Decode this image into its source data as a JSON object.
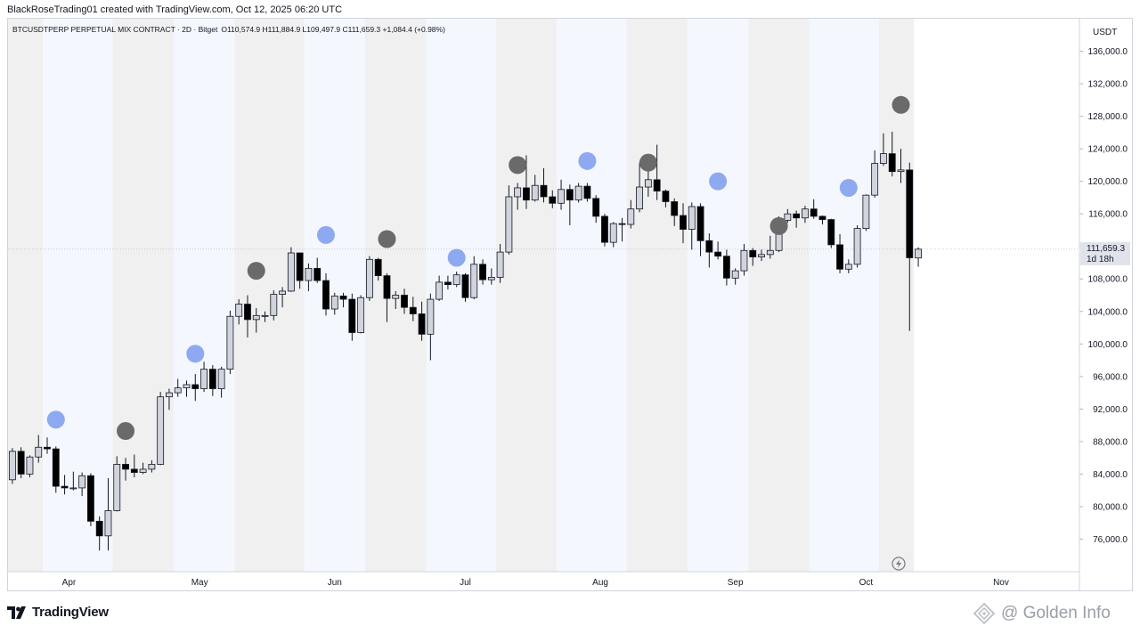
{
  "header": {
    "attribution": "BlackRoseTrading01 created with TradingView.com, Oct 12, 2025 06:20 UTC",
    "legend": "BTCUSDTPERP PERPETUAL MIX CONTRACT · 2D · Bitget",
    "ohlc": "O110,574.9 H111,884.9 L109,497.9 C111,659.3 +1,084.4 (+0.98%)"
  },
  "price_axis": {
    "currency": "USDT",
    "last_price": "111,659.3",
    "countdown": "1d 18h"
  },
  "footer": {
    "brand": "TradingView",
    "watermark": "@ Golden Info"
  },
  "colors": {
    "up_fill": "#d1d4dc",
    "down_fill": "#000000",
    "wick": "#131722",
    "band_gray": "#f0f0f0",
    "band_blue": "#f4f7fe",
    "dot_gray": "#6a6a6a",
    "dot_blue": "#8fa9f0"
  },
  "chart_data": {
    "type": "candlestick",
    "interval": "2D",
    "ylim": [
      72000,
      140000
    ],
    "yticks": [
      {
        "v": 136000,
        "label": "136,000.0"
      },
      {
        "v": 132000,
        "label": "132,000.0"
      },
      {
        "v": 128000,
        "label": "128,000.0"
      },
      {
        "v": 124000,
        "label": "124,000.0"
      },
      {
        "v": 120000,
        "label": "120,000.0"
      },
      {
        "v": 116000,
        "label": "116,000.0"
      },
      {
        "v": 112000,
        "label": "112,000.0"
      },
      {
        "v": 108000,
        "label": "108,000.0"
      },
      {
        "v": 104000,
        "label": "104,000.0"
      },
      {
        "v": 100000,
        "label": "100,000.0"
      },
      {
        "v": 96000,
        "label": "96,000.0"
      },
      {
        "v": 92000,
        "label": "92,000.0"
      },
      {
        "v": 88000,
        "label": "88,000.0"
      },
      {
        "v": 84000,
        "label": "84,000.0"
      },
      {
        "v": 80000,
        "label": "80,000.0"
      },
      {
        "v": 76000,
        "label": "76,000.0"
      }
    ],
    "xrange": [
      "2025-03-18",
      "2025-11-19"
    ],
    "xticks": [
      {
        "date": "2025-04-01",
        "label": "Apr"
      },
      {
        "date": "2025-05-01",
        "label": "May"
      },
      {
        "date": "2025-06-01",
        "label": "Jun"
      },
      {
        "date": "2025-07-01",
        "label": "Jul"
      },
      {
        "date": "2025-08-01",
        "label": "Aug"
      },
      {
        "date": "2025-09-01",
        "label": "Sep"
      },
      {
        "date": "2025-10-01",
        "label": "Oct"
      },
      {
        "date": "2025-11-01",
        "label": "Nov"
      }
    ],
    "bands": [
      {
        "from": "2025-03-18",
        "to": "2025-03-26",
        "tone": "gray"
      },
      {
        "from": "2025-03-26",
        "to": "2025-04-11",
        "tone": "blue"
      },
      {
        "from": "2025-04-11",
        "to": "2025-04-25",
        "tone": "gray"
      },
      {
        "from": "2025-04-25",
        "to": "2025-05-09",
        "tone": "blue"
      },
      {
        "from": "2025-05-09",
        "to": "2025-05-25",
        "tone": "gray"
      },
      {
        "from": "2025-05-25",
        "to": "2025-06-08",
        "tone": "blue"
      },
      {
        "from": "2025-06-08",
        "to": "2025-06-22",
        "tone": "gray"
      },
      {
        "from": "2025-06-22",
        "to": "2025-07-08",
        "tone": "blue"
      },
      {
        "from": "2025-07-08",
        "to": "2025-07-22",
        "tone": "gray"
      },
      {
        "from": "2025-07-22",
        "to": "2025-08-07",
        "tone": "blue"
      },
      {
        "from": "2025-08-07",
        "to": "2025-08-21",
        "tone": "gray"
      },
      {
        "from": "2025-08-21",
        "to": "2025-09-04",
        "tone": "blue"
      },
      {
        "from": "2025-09-04",
        "to": "2025-09-18",
        "tone": "gray"
      },
      {
        "from": "2025-09-18",
        "to": "2025-10-04",
        "tone": "blue"
      },
      {
        "from": "2025-10-04",
        "to": "2025-10-12",
        "tone": "gray"
      }
    ],
    "candles": [
      {
        "d": "2025-03-18",
        "o": 83300,
        "h": 87200,
        "l": 82800,
        "c": 86800
      },
      {
        "d": "2025-03-20",
        "o": 86800,
        "h": 87300,
        "l": 83500,
        "c": 84000
      },
      {
        "d": "2025-03-22",
        "o": 84000,
        "h": 86300,
        "l": 83600,
        "c": 86100
      },
      {
        "d": "2025-03-24",
        "o": 86100,
        "h": 88800,
        "l": 85400,
        "c": 87300
      },
      {
        "d": "2025-03-26",
        "o": 87300,
        "h": 88500,
        "l": 86500,
        "c": 87100
      },
      {
        "d": "2025-03-28",
        "o": 87100,
        "h": 87400,
        "l": 81700,
        "c": 82500
      },
      {
        "d": "2025-03-30",
        "o": 82500,
        "h": 83900,
        "l": 81500,
        "c": 82300
      },
      {
        "d": "2025-04-01",
        "o": 82300,
        "h": 84300,
        "l": 82000,
        "c": 82300
      },
      {
        "d": "2025-04-03",
        "o": 82300,
        "h": 84200,
        "l": 81300,
        "c": 83800
      },
      {
        "d": "2025-04-05",
        "o": 83800,
        "h": 84100,
        "l": 77600,
        "c": 78200
      },
      {
        "d": "2025-04-07",
        "o": 78200,
        "h": 78800,
        "l": 74600,
        "c": 76400
      },
      {
        "d": "2025-04-09",
        "o": 76400,
        "h": 83500,
        "l": 74600,
        "c": 79500
      },
      {
        "d": "2025-04-11",
        "o": 79500,
        "h": 86200,
        "l": 79400,
        "c": 85200
      },
      {
        "d": "2025-04-13",
        "o": 85200,
        "h": 86000,
        "l": 83200,
        "c": 84600
      },
      {
        "d": "2025-04-15",
        "o": 84600,
        "h": 86400,
        "l": 83600,
        "c": 84200
      },
      {
        "d": "2025-04-17",
        "o": 84200,
        "h": 85400,
        "l": 84000,
        "c": 84600
      },
      {
        "d": "2025-04-19",
        "o": 84600,
        "h": 85700,
        "l": 84200,
        "c": 85200
      },
      {
        "d": "2025-04-21",
        "o": 85200,
        "h": 94100,
        "l": 85100,
        "c": 93500
      },
      {
        "d": "2025-04-23",
        "o": 93500,
        "h": 94500,
        "l": 91900,
        "c": 94000
      },
      {
        "d": "2025-04-25",
        "o": 94000,
        "h": 95700,
        "l": 93500,
        "c": 94600
      },
      {
        "d": "2025-04-27",
        "o": 94600,
        "h": 95500,
        "l": 93500,
        "c": 95000
      },
      {
        "d": "2025-04-29",
        "o": 95000,
        "h": 96300,
        "l": 93000,
        "c": 94500
      },
      {
        "d": "2025-05-01",
        "o": 94500,
        "h": 97800,
        "l": 94100,
        "c": 96900
      },
      {
        "d": "2025-05-03",
        "o": 96900,
        "h": 97400,
        "l": 93600,
        "c": 94500
      },
      {
        "d": "2025-05-05",
        "o": 94500,
        "h": 97200,
        "l": 93400,
        "c": 96900
      },
      {
        "d": "2025-05-07",
        "o": 96900,
        "h": 104100,
        "l": 96300,
        "c": 103400
      },
      {
        "d": "2025-05-09",
        "o": 103400,
        "h": 105500,
        "l": 102400,
        "c": 104900
      },
      {
        "d": "2025-05-11",
        "o": 104900,
        "h": 106000,
        "l": 100800,
        "c": 103000
      },
      {
        "d": "2025-05-13",
        "o": 103000,
        "h": 104400,
        "l": 101400,
        "c": 103500
      },
      {
        "d": "2025-05-15",
        "o": 103500,
        "h": 104000,
        "l": 102700,
        "c": 103500
      },
      {
        "d": "2025-05-17",
        "o": 103500,
        "h": 106600,
        "l": 102900,
        "c": 106100
      },
      {
        "d": "2025-05-19",
        "o": 106100,
        "h": 107000,
        "l": 104500,
        "c": 106500
      },
      {
        "d": "2025-05-21",
        "o": 106500,
        "h": 111900,
        "l": 106400,
        "c": 111200
      },
      {
        "d": "2025-05-23",
        "o": 111200,
        "h": 111200,
        "l": 106800,
        "c": 107800
      },
      {
        "d": "2025-05-25",
        "o": 107800,
        "h": 109900,
        "l": 106500,
        "c": 109300
      },
      {
        "d": "2025-05-27",
        "o": 109300,
        "h": 110600,
        "l": 107500,
        "c": 107800
      },
      {
        "d": "2025-05-29",
        "o": 107800,
        "h": 108700,
        "l": 103500,
        "c": 104300
      },
      {
        "d": "2025-05-31",
        "o": 104300,
        "h": 106300,
        "l": 103600,
        "c": 105900
      },
      {
        "d": "2025-06-02",
        "o": 105900,
        "h": 106300,
        "l": 104500,
        "c": 105500
      },
      {
        "d": "2025-06-04",
        "o": 105500,
        "h": 106200,
        "l": 100400,
        "c": 101400
      },
      {
        "d": "2025-06-06",
        "o": 101400,
        "h": 106000,
        "l": 101300,
        "c": 105700
      },
      {
        "d": "2025-06-08",
        "o": 105700,
        "h": 110800,
        "l": 105300,
        "c": 110400
      },
      {
        "d": "2025-06-10",
        "o": 110400,
        "h": 110600,
        "l": 107800,
        "c": 108400
      },
      {
        "d": "2025-06-12",
        "o": 108400,
        "h": 108700,
        "l": 102700,
        "c": 105600
      },
      {
        "d": "2025-06-14",
        "o": 105600,
        "h": 106500,
        "l": 104300,
        "c": 106000
      },
      {
        "d": "2025-06-16",
        "o": 106000,
        "h": 106800,
        "l": 103700,
        "c": 104500
      },
      {
        "d": "2025-06-18",
        "o": 104500,
        "h": 105800,
        "l": 102800,
        "c": 103700
      },
      {
        "d": "2025-06-20",
        "o": 103700,
        "h": 105200,
        "l": 100400,
        "c": 101200
      },
      {
        "d": "2025-06-22",
        "o": 101200,
        "h": 106200,
        "l": 98000,
        "c": 105500
      },
      {
        "d": "2025-06-24",
        "o": 105500,
        "h": 108400,
        "l": 105300,
        "c": 107600
      },
      {
        "d": "2025-06-26",
        "o": 107600,
        "h": 108400,
        "l": 106700,
        "c": 107300
      },
      {
        "d": "2025-06-28",
        "o": 107300,
        "h": 108900,
        "l": 107000,
        "c": 108500
      },
      {
        "d": "2025-06-30",
        "o": 108500,
        "h": 108700,
        "l": 105200,
        "c": 105700
      },
      {
        "d": "2025-07-02",
        "o": 105700,
        "h": 110800,
        "l": 105500,
        "c": 109800
      },
      {
        "d": "2025-07-04",
        "o": 109800,
        "h": 110400,
        "l": 107300,
        "c": 107900
      },
      {
        "d": "2025-07-06",
        "o": 107900,
        "h": 109300,
        "l": 107300,
        "c": 108200
      },
      {
        "d": "2025-07-08",
        "o": 108200,
        "h": 112300,
        "l": 107500,
        "c": 111300
      },
      {
        "d": "2025-07-10",
        "o": 111300,
        "h": 119500,
        "l": 111000,
        "c": 118100
      },
      {
        "d": "2025-07-12",
        "o": 118100,
        "h": 119800,
        "l": 116500,
        "c": 119200
      },
      {
        "d": "2025-07-14",
        "o": 119200,
        "h": 123200,
        "l": 116600,
        "c": 117700
      },
      {
        "d": "2025-07-16",
        "o": 117700,
        "h": 120800,
        "l": 117500,
        "c": 119500
      },
      {
        "d": "2025-07-18",
        "o": 119500,
        "h": 121600,
        "l": 117400,
        "c": 118100
      },
      {
        "d": "2025-07-20",
        "o": 118100,
        "h": 118900,
        "l": 116700,
        "c": 117300
      },
      {
        "d": "2025-07-22",
        "o": 117300,
        "h": 120200,
        "l": 116500,
        "c": 119000
      },
      {
        "d": "2025-07-24",
        "o": 119000,
        "h": 119600,
        "l": 114600,
        "c": 117700
      },
      {
        "d": "2025-07-26",
        "o": 117700,
        "h": 119800,
        "l": 117400,
        "c": 119400
      },
      {
        "d": "2025-07-28",
        "o": 119400,
        "h": 119800,
        "l": 117500,
        "c": 117900
      },
      {
        "d": "2025-07-30",
        "o": 117900,
        "h": 118300,
        "l": 114900,
        "c": 115700
      },
      {
        "d": "2025-08-01",
        "o": 115700,
        "h": 116000,
        "l": 112000,
        "c": 112500
      },
      {
        "d": "2025-08-03",
        "o": 112500,
        "h": 115000,
        "l": 111900,
        "c": 114800
      },
      {
        "d": "2025-08-05",
        "o": 114800,
        "h": 115500,
        "l": 112600,
        "c": 114700
      },
      {
        "d": "2025-08-07",
        "o": 114700,
        "h": 117700,
        "l": 114200,
        "c": 116600
      },
      {
        "d": "2025-08-09",
        "o": 116600,
        "h": 122300,
        "l": 116200,
        "c": 119300
      },
      {
        "d": "2025-08-11",
        "o": 119300,
        "h": 123000,
        "l": 118100,
        "c": 120200
      },
      {
        "d": "2025-08-13",
        "o": 120200,
        "h": 124500,
        "l": 117700,
        "c": 118800
      },
      {
        "d": "2025-08-15",
        "o": 118800,
        "h": 119000,
        "l": 116800,
        "c": 117500
      },
      {
        "d": "2025-08-17",
        "o": 117500,
        "h": 117900,
        "l": 114500,
        "c": 115800
      },
      {
        "d": "2025-08-19",
        "o": 115800,
        "h": 117300,
        "l": 112400,
        "c": 114100
      },
      {
        "d": "2025-08-21",
        "o": 114100,
        "h": 117400,
        "l": 111600,
        "c": 116900
      },
      {
        "d": "2025-08-23",
        "o": 116900,
        "h": 117300,
        "l": 110800,
        "c": 112700
      },
      {
        "d": "2025-08-25",
        "o": 112700,
        "h": 113600,
        "l": 109400,
        "c": 111300
      },
      {
        "d": "2025-08-27",
        "o": 111300,
        "h": 112600,
        "l": 110400,
        "c": 110800
      },
      {
        "d": "2025-08-29",
        "o": 110800,
        "h": 111600,
        "l": 107200,
        "c": 108100
      },
      {
        "d": "2025-08-31",
        "o": 108100,
        "h": 109300,
        "l": 107300,
        "c": 109000
      },
      {
        "d": "2025-09-02",
        "o": 109000,
        "h": 112300,
        "l": 108400,
        "c": 111500
      },
      {
        "d": "2025-09-04",
        "o": 111500,
        "h": 111800,
        "l": 109600,
        "c": 110700
      },
      {
        "d": "2025-09-06",
        "o": 110700,
        "h": 111600,
        "l": 110200,
        "c": 111000
      },
      {
        "d": "2025-09-08",
        "o": 111000,
        "h": 113300,
        "l": 110500,
        "c": 111500
      },
      {
        "d": "2025-09-10",
        "o": 111500,
        "h": 115700,
        "l": 111300,
        "c": 115200
      },
      {
        "d": "2025-09-12",
        "o": 115200,
        "h": 116600,
        "l": 114900,
        "c": 116000
      },
      {
        "d": "2025-09-14",
        "o": 116000,
        "h": 116400,
        "l": 114300,
        "c": 115500
      },
      {
        "d": "2025-09-16",
        "o": 115500,
        "h": 117000,
        "l": 114900,
        "c": 116600
      },
      {
        "d": "2025-09-18",
        "o": 116600,
        "h": 117800,
        "l": 115400,
        "c": 115700
      },
      {
        "d": "2025-09-20",
        "o": 115700,
        "h": 115800,
        "l": 114700,
        "c": 115300
      },
      {
        "d": "2025-09-22",
        "o": 115300,
        "h": 115400,
        "l": 111800,
        "c": 112200
      },
      {
        "d": "2025-09-24",
        "o": 112200,
        "h": 113500,
        "l": 108700,
        "c": 109200
      },
      {
        "d": "2025-09-26",
        "o": 109200,
        "h": 110400,
        "l": 108700,
        "c": 109800
      },
      {
        "d": "2025-09-28",
        "o": 109800,
        "h": 114600,
        "l": 109400,
        "c": 114200
      },
      {
        "d": "2025-09-30",
        "o": 114200,
        "h": 118400,
        "l": 113900,
        "c": 118300
      },
      {
        "d": "2025-10-02",
        "o": 118300,
        "h": 123800,
        "l": 118000,
        "c": 122200
      },
      {
        "d": "2025-10-04",
        "o": 122200,
        "h": 125900,
        "l": 121900,
        "c": 123400
      },
      {
        "d": "2025-10-06",
        "o": 123400,
        "h": 126100,
        "l": 120600,
        "c": 121200
      },
      {
        "d": "2025-10-08",
        "o": 121200,
        "h": 124000,
        "l": 119800,
        "c": 121400
      },
      {
        "d": "2025-10-10",
        "o": 121400,
        "h": 122300,
        "l": 101600,
        "c": 110600
      },
      {
        "d": "2025-10-12",
        "o": 110574.9,
        "h": 111884.9,
        "l": 109497.9,
        "c": 111659.3
      }
    ],
    "markers": [
      {
        "d": "2025-03-28",
        "price": 90700,
        "color": "blue"
      },
      {
        "d": "2025-04-13",
        "price": 89300,
        "color": "gray"
      },
      {
        "d": "2025-04-29",
        "price": 98800,
        "color": "blue"
      },
      {
        "d": "2025-05-13",
        "price": 109000,
        "color": "gray"
      },
      {
        "d": "2025-05-29",
        "price": 113400,
        "color": "blue"
      },
      {
        "d": "2025-06-12",
        "price": 112900,
        "color": "gray"
      },
      {
        "d": "2025-06-28",
        "price": 110600,
        "color": "blue"
      },
      {
        "d": "2025-07-12",
        "price": 122000,
        "color": "gray"
      },
      {
        "d": "2025-07-28",
        "price": 122500,
        "color": "blue"
      },
      {
        "d": "2025-08-11",
        "price": 122300,
        "color": "gray"
      },
      {
        "d": "2025-08-27",
        "price": 120000,
        "color": "blue"
      },
      {
        "d": "2025-09-10",
        "price": 114500,
        "color": "gray"
      },
      {
        "d": "2025-09-26",
        "price": 119200,
        "color": "blue"
      },
      {
        "d": "2025-10-08",
        "price": 129400,
        "color": "gray"
      }
    ]
  }
}
